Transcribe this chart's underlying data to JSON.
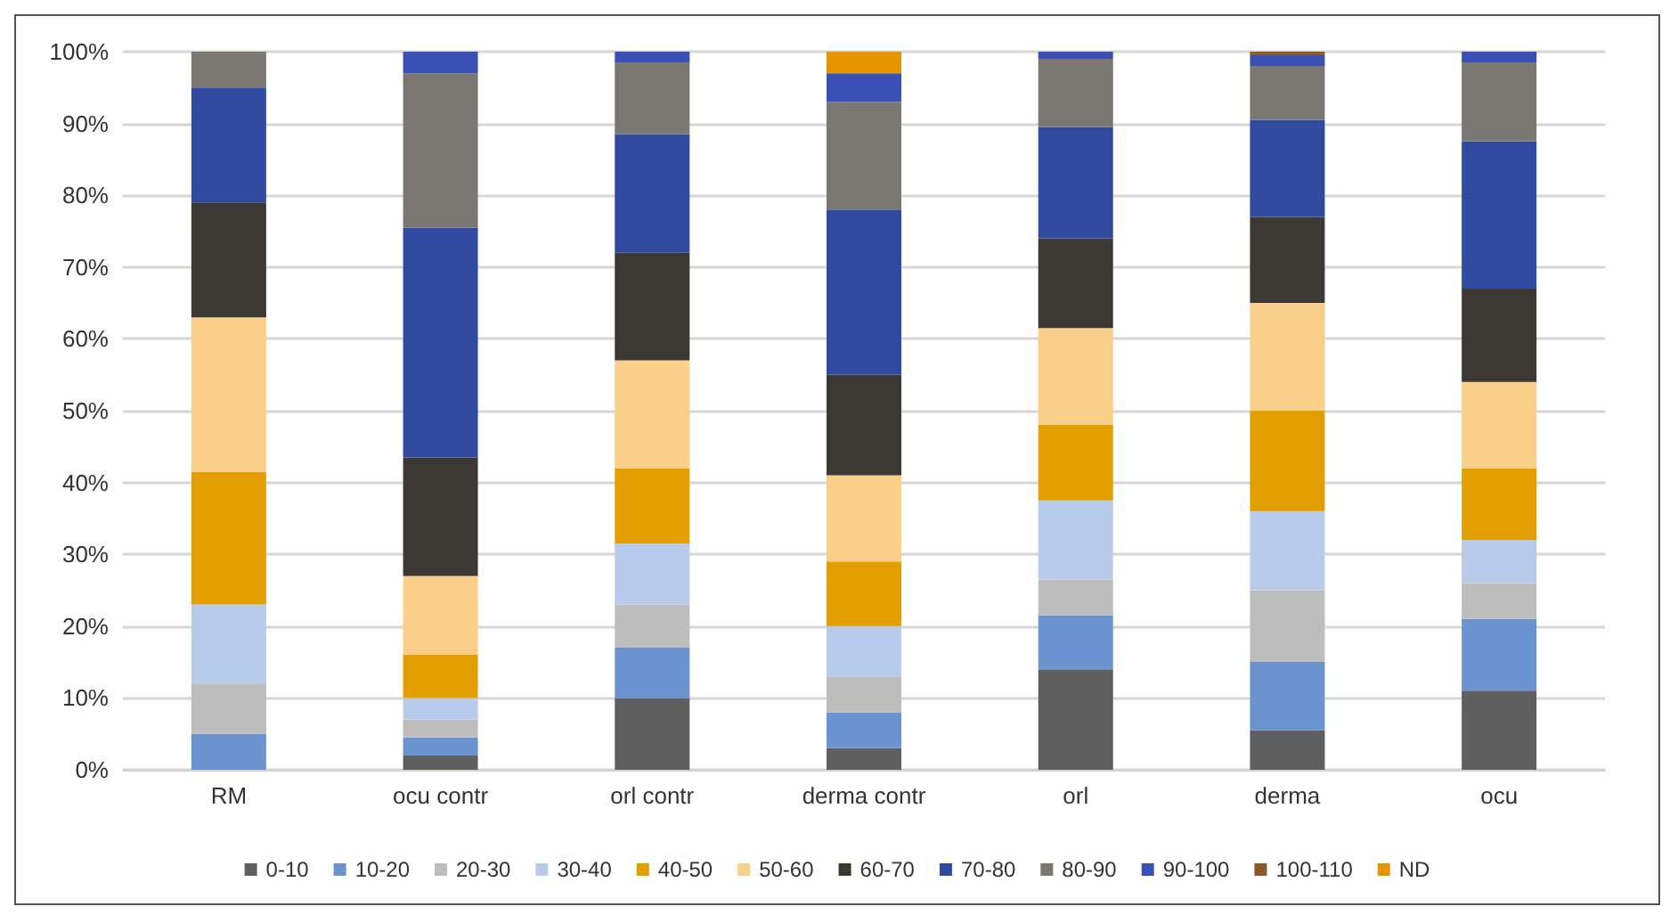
{
  "chart_data": {
    "type": "bar",
    "stacked": true,
    "categories": [
      "RM",
      "ocu contr",
      "orl contr",
      "derma contr",
      "orl",
      "derma",
      "ocu"
    ],
    "ylim": [
      0,
      100
    ],
    "yticks": [
      {
        "value": 0,
        "label": "0%"
      },
      {
        "value": 10,
        "label": "10%"
      },
      {
        "value": 20,
        "label": "20%"
      },
      {
        "value": 30,
        "label": "30%"
      },
      {
        "value": 40,
        "label": "40%"
      },
      {
        "value": 50,
        "label": "50%"
      },
      {
        "value": 60,
        "label": "60%"
      },
      {
        "value": 70,
        "label": "70%"
      },
      {
        "value": 80,
        "label": "80%"
      },
      {
        "value": 90,
        "label": "90%"
      },
      {
        "value": 100,
        "label": "100%"
      }
    ],
    "grid": "y",
    "legend": "bottom",
    "series": [
      {
        "name": "0-10",
        "color": "#5f5f5f",
        "values": [
          0,
          2,
          10,
          3,
          14,
          5.5,
          11
        ]
      },
      {
        "name": "10-20",
        "color": "#6a93d0",
        "values": [
          5,
          2.5,
          7,
          5,
          7.5,
          9.5,
          10
        ]
      },
      {
        "name": "20-30",
        "color": "#bdbdbd",
        "values": [
          7,
          2.5,
          6,
          5,
          5,
          10,
          5
        ]
      },
      {
        "name": "30-40",
        "color": "#b8cbea",
        "values": [
          11,
          3,
          8.5,
          7,
          11,
          11,
          6
        ]
      },
      {
        "name": "40-50",
        "color": "#e39f00",
        "values": [
          18.5,
          6,
          10.5,
          9,
          10.5,
          14,
          10
        ]
      },
      {
        "name": "50-60",
        "color": "#f9cf8a",
        "values": [
          21.5,
          11,
          15,
          12,
          13.5,
          15,
          12
        ]
      },
      {
        "name": "60-70",
        "color": "#3c3834",
        "values": [
          16,
          16.5,
          15,
          14,
          12.5,
          12,
          13
        ]
      },
      {
        "name": "70-80",
        "color": "#2f4a9e",
        "values": [
          16,
          32,
          16.5,
          23,
          15.5,
          13.5,
          20.5
        ]
      },
      {
        "name": "80-90",
        "color": "#7b7773",
        "values": [
          5,
          21.5,
          10,
          15,
          9.5,
          7.5,
          11
        ]
      },
      {
        "name": "90-100",
        "color": "#3a50b4",
        "values": [
          0,
          3,
          1.5,
          4,
          1,
          1.5,
          1.5
        ]
      },
      {
        "name": "100-110",
        "color": "#8a5a2b",
        "values": [
          0,
          0,
          0,
          0,
          0,
          0.5,
          0
        ]
      },
      {
        "name": "ND",
        "color": "#e69400",
        "values": [
          0,
          0,
          0,
          3,
          0,
          0,
          0
        ]
      }
    ]
  }
}
